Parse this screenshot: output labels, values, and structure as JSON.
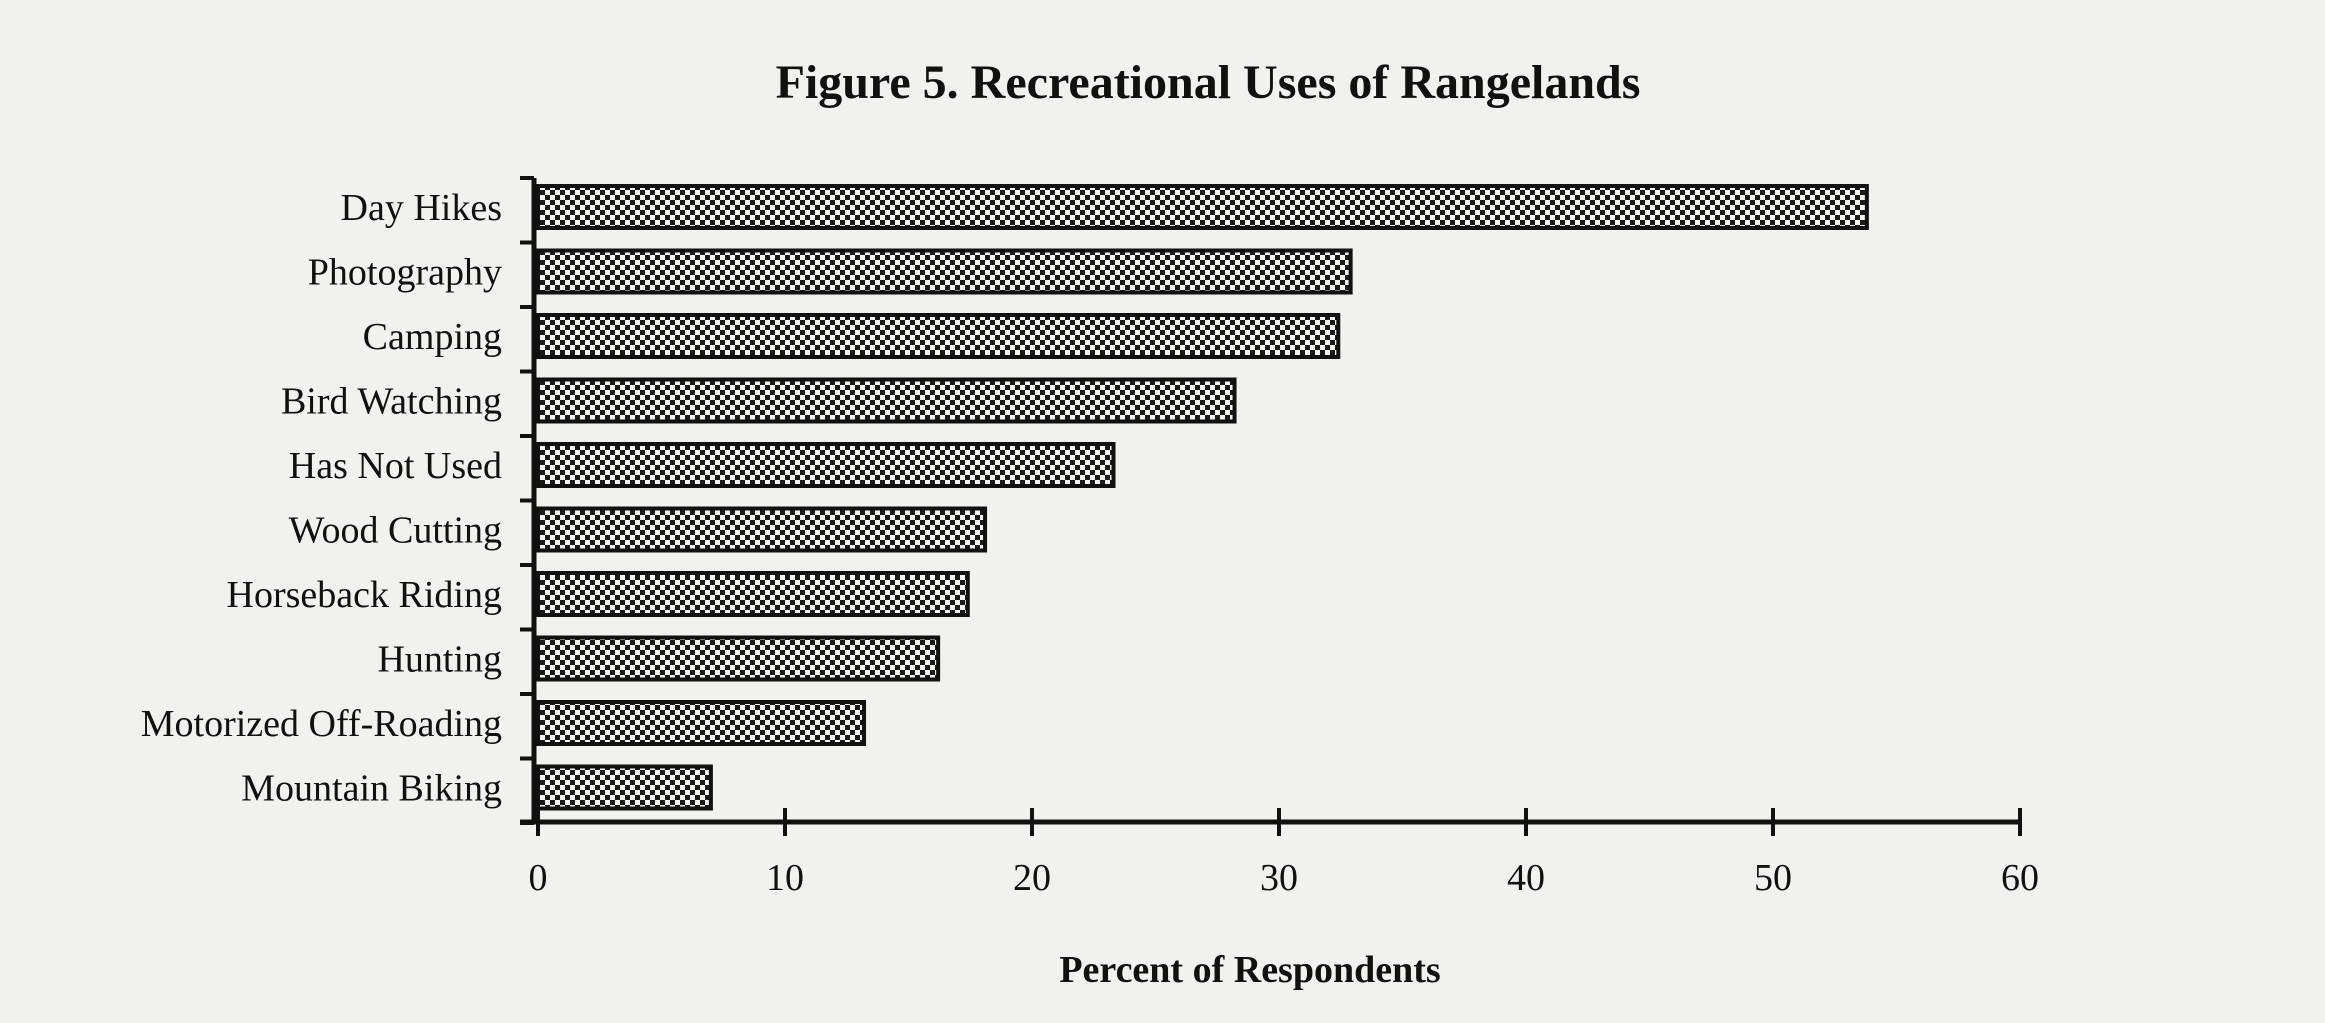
{
  "chart_data": {
    "type": "bar",
    "orientation": "horizontal",
    "title": "Figure 5. Recreational Uses of Rangelands",
    "xlabel": "Percent of Respondents",
    "ylabel": "",
    "xlim": [
      0,
      60
    ],
    "xticks": [
      0,
      10,
      20,
      30,
      40,
      50,
      60
    ],
    "grid": false,
    "bar_pattern": "checkered",
    "categories": [
      "Day Hikes",
      "Photography",
      "Camping",
      "Bird Watching",
      "Has Not Used",
      "Wood Cutting",
      "Horseback Riding",
      "Hunting",
      "Motorized Off-Roading",
      "Mountain Biking"
    ],
    "values": [
      53.8,
      32.9,
      32.4,
      28.2,
      23.3,
      18.1,
      17.4,
      16.2,
      13.2,
      7.0
    ]
  }
}
